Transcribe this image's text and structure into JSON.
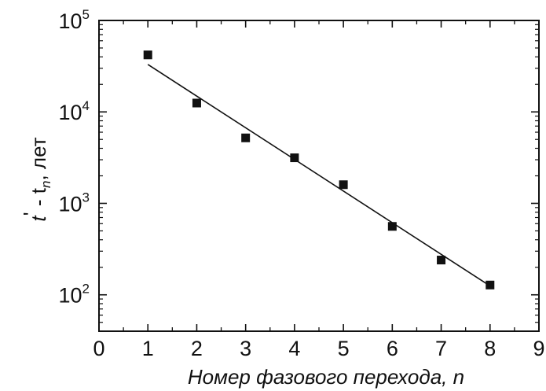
{
  "chart_data": {
    "type": "scatter",
    "xlabel": "Номер фазового перехода, n",
    "ylabel": {
      "main": "t",
      "prime": "'",
      "mid": " - t",
      "sub": "n",
      "tail": ", лет"
    },
    "xlim": [
      0,
      9
    ],
    "ylim": [
      40,
      100000
    ],
    "yscale": "log",
    "grid": false,
    "x_ticks": [
      0,
      1,
      2,
      3,
      4,
      5,
      6,
      7,
      8,
      9
    ],
    "x_tick_labels": [
      "0",
      "1",
      "2",
      "3",
      "4",
      "5",
      "6",
      "7",
      "8",
      "9"
    ],
    "y_ticks": [
      {
        "value": 100,
        "base": "10",
        "exp": "2"
      },
      {
        "value": 1000,
        "base": "10",
        "exp": "3"
      },
      {
        "value": 10000,
        "base": "10",
        "exp": "4"
      },
      {
        "value": 100000,
        "base": "10",
        "exp": "5"
      }
    ],
    "series": [
      {
        "kind": "points",
        "marker": "square",
        "x": [
          1,
          2,
          3,
          4,
          5,
          6,
          7,
          8
        ],
        "y": [
          42000,
          12500,
          5200,
          3150,
          1600,
          560,
          240,
          128
        ]
      },
      {
        "kind": "fit-line",
        "x": [
          1,
          8
        ],
        "y": [
          33000,
          125
        ]
      }
    ],
    "colors": {
      "marks": "#111111",
      "axes": "#111111",
      "background": "#ffffff"
    }
  }
}
